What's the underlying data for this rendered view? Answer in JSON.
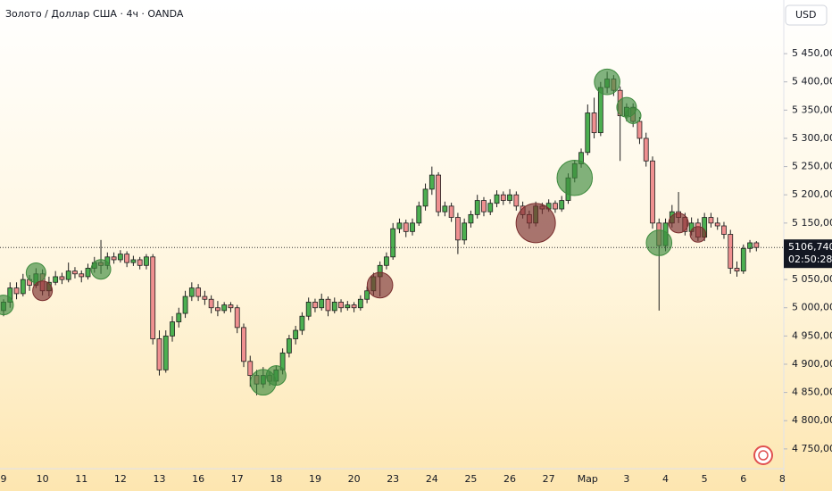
{
  "chart_data": {
    "type": "candlestick",
    "title": "Золото / Доллар США · 4ч · OANDA",
    "currency": "USD",
    "ylim": [
      4715,
      5545
    ],
    "yticks": [
      {
        "value": 4750,
        "label": "4 750,000"
      },
      {
        "value": 4800,
        "label": "4 800,000"
      },
      {
        "value": 4850,
        "label": "4 850,000"
      },
      {
        "value": 4900,
        "label": "4 900,000"
      },
      {
        "value": 4950,
        "label": "4 950,000"
      },
      {
        "value": 5000,
        "label": "5 000,000"
      },
      {
        "value": 5050,
        "label": "5 050,000"
      },
      {
        "value": 5100,
        "label": "5 100,000"
      },
      {
        "value": 5150,
        "label": "5 150,000"
      },
      {
        "value": 5200,
        "label": "5 200,000"
      },
      {
        "value": 5250,
        "label": "5 250,000"
      },
      {
        "value": 5300,
        "label": "5 300,000"
      },
      {
        "value": 5350,
        "label": "5 350,000"
      },
      {
        "value": 5400,
        "label": "5 400,000"
      },
      {
        "value": 5450,
        "label": "5 450,000"
      }
    ],
    "xlabels": [
      {
        "index": 0,
        "label": "9"
      },
      {
        "index": 6,
        "label": "10"
      },
      {
        "index": 12,
        "label": "11"
      },
      {
        "index": 18,
        "label": "12"
      },
      {
        "index": 24,
        "label": "13"
      },
      {
        "index": 30,
        "label": "16"
      },
      {
        "index": 36,
        "label": "17"
      },
      {
        "index": 42,
        "label": "18"
      },
      {
        "index": 48,
        "label": "19"
      },
      {
        "index": 54,
        "label": "20"
      },
      {
        "index": 60,
        "label": "23"
      },
      {
        "index": 66,
        "label": "24"
      },
      {
        "index": 72,
        "label": "25"
      },
      {
        "index": 78,
        "label": "26"
      },
      {
        "index": 84,
        "label": "27"
      },
      {
        "index": 90,
        "label": "Мар"
      },
      {
        "index": 96,
        "label": "3"
      },
      {
        "index": 102,
        "label": "4"
      },
      {
        "index": 108,
        "label": "5"
      },
      {
        "index": 114,
        "label": "6"
      },
      {
        "index": 120,
        "label": "8"
      }
    ],
    "up_color": "#4caf50",
    "down_color": "#ef9090",
    "border_color": "#1e1e1e",
    "ohlc": [
      [
        4995,
        5015,
        4985,
        5010
      ],
      [
        5010,
        5045,
        5000,
        5035
      ],
      [
        5035,
        5045,
        5015,
        5025
      ],
      [
        5025,
        5060,
        5020,
        5050
      ],
      [
        5050,
        5058,
        5030,
        5040
      ],
      [
        5040,
        5070,
        5035,
        5060
      ],
      [
        5060,
        5068,
        5022,
        5030
      ],
      [
        5030,
        5055,
        5020,
        5045
      ],
      [
        5045,
        5065,
        5040,
        5055
      ],
      [
        5055,
        5062,
        5042,
        5050
      ],
      [
        5050,
        5080,
        5045,
        5065
      ],
      [
        5065,
        5072,
        5052,
        5060
      ],
      [
        5060,
        5066,
        5045,
        5055
      ],
      [
        5055,
        5078,
        5050,
        5070
      ],
      [
        5070,
        5090,
        5062,
        5080
      ],
      [
        5080,
        5120,
        5060,
        5075
      ],
      [
        5075,
        5098,
        5068,
        5090
      ],
      [
        5090,
        5098,
        5078,
        5085
      ],
      [
        5085,
        5102,
        5080,
        5095
      ],
      [
        5095,
        5100,
        5072,
        5080
      ],
      [
        5080,
        5092,
        5074,
        5085
      ],
      [
        5085,
        5090,
        5068,
        5075
      ],
      [
        5075,
        5095,
        5068,
        5090
      ],
      [
        5090,
        5095,
        4935,
        4945
      ],
      [
        4945,
        4960,
        4880,
        4890
      ],
      [
        4890,
        4960,
        4885,
        4950
      ],
      [
        4950,
        4985,
        4940,
        4975
      ],
      [
        4975,
        5000,
        4965,
        4990
      ],
      [
        4990,
        5030,
        4982,
        5020
      ],
      [
        5020,
        5045,
        5012,
        5035
      ],
      [
        5035,
        5042,
        5012,
        5020
      ],
      [
        5020,
        5030,
        5005,
        5015
      ],
      [
        5015,
        5022,
        4990,
        5000
      ],
      [
        5000,
        5012,
        4985,
        4995
      ],
      [
        4995,
        5010,
        4990,
        5005
      ],
      [
        5005,
        5010,
        4992,
        5000
      ],
      [
        5000,
        5005,
        4955,
        4965
      ],
      [
        4965,
        4972,
        4895,
        4905
      ],
      [
        4905,
        4915,
        4860,
        4880
      ],
      [
        4880,
        4890,
        4845,
        4865
      ],
      [
        4865,
        4895,
        4858,
        4880
      ],
      [
        4880,
        4888,
        4862,
        4870
      ],
      [
        4870,
        4898,
        4862,
        4890
      ],
      [
        4890,
        4928,
        4882,
        4920
      ],
      [
        4920,
        4952,
        4912,
        4945
      ],
      [
        4945,
        4968,
        4935,
        4960
      ],
      [
        4960,
        4992,
        4952,
        4985
      ],
      [
        4985,
        5018,
        4978,
        5010
      ],
      [
        5010,
        5016,
        4992,
        5000
      ],
      [
        5000,
        5025,
        4995,
        5015
      ],
      [
        5015,
        5020,
        4985,
        4995
      ],
      [
        4995,
        5018,
        4990,
        5010
      ],
      [
        5010,
        5015,
        4992,
        5000
      ],
      [
        5000,
        5012,
        4995,
        5005
      ],
      [
        5005,
        5010,
        4992,
        5000
      ],
      [
        5000,
        5022,
        4995,
        5015
      ],
      [
        5015,
        5038,
        5008,
        5030
      ],
      [
        5030,
        5062,
        5022,
        5055
      ],
      [
        5055,
        5082,
        5020,
        5075
      ],
      [
        5075,
        5098,
        5068,
        5090
      ],
      [
        5090,
        5150,
        5085,
        5140
      ],
      [
        5140,
        5158,
        5132,
        5150
      ],
      [
        5150,
        5156,
        5125,
        5135
      ],
      [
        5135,
        5158,
        5128,
        5150
      ],
      [
        5150,
        5188,
        5145,
        5180
      ],
      [
        5180,
        5220,
        5172,
        5210
      ],
      [
        5210,
        5250,
        5200,
        5235
      ],
      [
        5235,
        5240,
        5162,
        5170
      ],
      [
        5170,
        5188,
        5162,
        5180
      ],
      [
        5180,
        5186,
        5152,
        5160
      ],
      [
        5160,
        5168,
        5095,
        5120
      ],
      [
        5120,
        5158,
        5112,
        5150
      ],
      [
        5150,
        5172,
        5142,
        5165
      ],
      [
        5165,
        5200,
        5158,
        5190
      ],
      [
        5190,
        5196,
        5162,
        5170
      ],
      [
        5170,
        5192,
        5164,
        5185
      ],
      [
        5185,
        5208,
        5178,
        5200
      ],
      [
        5200,
        5206,
        5182,
        5190
      ],
      [
        5190,
        5210,
        5184,
        5200
      ],
      [
        5200,
        5206,
        5172,
        5180
      ],
      [
        5180,
        5188,
        5158,
        5165
      ],
      [
        5165,
        5172,
        5140,
        5150
      ],
      [
        5150,
        5188,
        5144,
        5180
      ],
      [
        5180,
        5186,
        5166,
        5175
      ],
      [
        5175,
        5192,
        5170,
        5185
      ],
      [
        5185,
        5190,
        5168,
        5175
      ],
      [
        5175,
        5198,
        5170,
        5190
      ],
      [
        5190,
        5238,
        5184,
        5230
      ],
      [
        5230,
        5262,
        5222,
        5255
      ],
      [
        5255,
        5282,
        5248,
        5275
      ],
      [
        5275,
        5360,
        5270,
        5345
      ],
      [
        5345,
        5372,
        5300,
        5310
      ],
      [
        5310,
        5400,
        5304,
        5390
      ],
      [
        5390,
        5418,
        5380,
        5405
      ],
      [
        5405,
        5412,
        5375,
        5385
      ],
      [
        5385,
        5392,
        5260,
        5340
      ],
      [
        5340,
        5362,
        5330,
        5355
      ],
      [
        5355,
        5362,
        5320,
        5330
      ],
      [
        5330,
        5338,
        5290,
        5300
      ],
      [
        5300,
        5310,
        5250,
        5260
      ],
      [
        5260,
        5268,
        5140,
        5150
      ],
      [
        5150,
        5158,
        4995,
        5110
      ],
      [
        5110,
        5158,
        5100,
        5150
      ],
      [
        5150,
        5182,
        5142,
        5170
      ],
      [
        5170,
        5205,
        5150,
        5160
      ],
      [
        5160,
        5168,
        5128,
        5135
      ],
      [
        5135,
        5160,
        5128,
        5150
      ],
      [
        5150,
        5158,
        5118,
        5125
      ],
      [
        5125,
        5168,
        5118,
        5160
      ],
      [
        5160,
        5168,
        5142,
        5150
      ],
      [
        5150,
        5160,
        5138,
        5145
      ],
      [
        5145,
        5152,
        5122,
        5130
      ],
      [
        5130,
        5138,
        5060,
        5070
      ],
      [
        5070,
        5082,
        5055,
        5065
      ],
      [
        5065,
        5112,
        5060,
        5105
      ],
      [
        5105,
        5120,
        5098,
        5115
      ],
      [
        5115,
        5118,
        5100,
        5106.74
      ]
    ],
    "bubbles": [
      {
        "index": 0,
        "value": 5005,
        "size": 1,
        "color": "#3d8a3d"
      },
      {
        "index": 5,
        "value": 5062,
        "size": 1,
        "color": "#3d8a3d"
      },
      {
        "index": 6,
        "value": 5030,
        "size": 1,
        "color": "#7a2e2e"
      },
      {
        "index": 15,
        "value": 5068,
        "size": 1,
        "color": "#3d8a3d"
      },
      {
        "index": 40,
        "value": 4868,
        "size": 1.3,
        "color": "#3d8a3d"
      },
      {
        "index": 42,
        "value": 4880,
        "size": 1,
        "color": "#3d8a3d"
      },
      {
        "index": 58,
        "value": 5040,
        "size": 1.3,
        "color": "#7a2e2e"
      },
      {
        "index": 82,
        "value": 5150,
        "size": 2,
        "color": "#7a2e2e"
      },
      {
        "index": 88,
        "value": 5230,
        "size": 1.8,
        "color": "#3d8a3d"
      },
      {
        "index": 93,
        "value": 5400,
        "size": 1.3,
        "color": "#3d8a3d"
      },
      {
        "index": 96,
        "value": 5355,
        "size": 1,
        "color": "#3d8a3d"
      },
      {
        "index": 97,
        "value": 5340,
        "size": 0.8,
        "color": "#3d8a3d"
      },
      {
        "index": 101,
        "value": 5115,
        "size": 1.3,
        "color": "#3d8a3d"
      },
      {
        "index": 104,
        "value": 5150,
        "size": 1,
        "color": "#7a2e2e"
      },
      {
        "index": 107,
        "value": 5130,
        "size": 0.8,
        "color": "#7a2e2e"
      }
    ],
    "last": {
      "value": 5106.74,
      "label": "5106,740",
      "timer": "02:50:28"
    }
  }
}
